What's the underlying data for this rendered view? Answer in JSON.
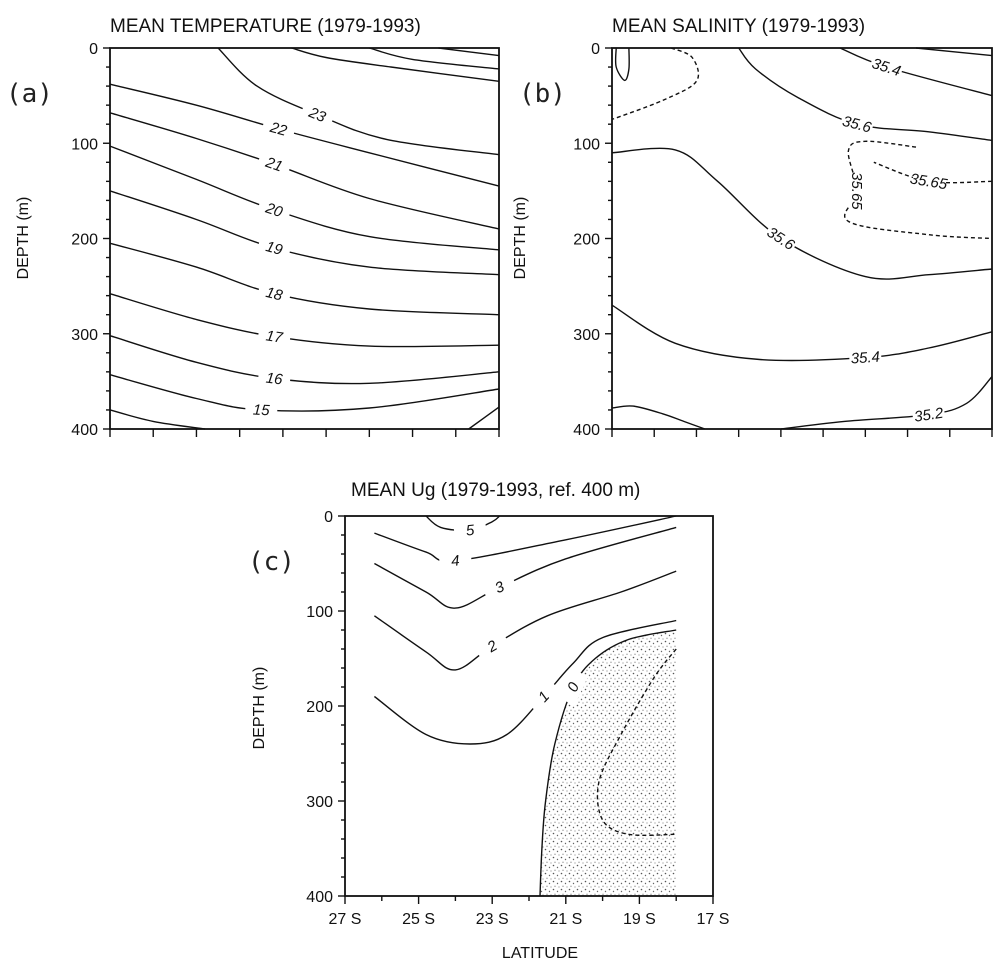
{
  "panels": [
    {
      "id": "a",
      "panel_label": "(a)",
      "title": "MEAN TEMPERATURE (1979-1993)",
      "ylabel": "DEPTH (m)",
      "xlabel": "",
      "y_ticks": [
        "0",
        "100",
        "200",
        "300",
        "400"
      ],
      "x_tick_labels": []
    },
    {
      "id": "b",
      "panel_label": "(b)",
      "title": "MEAN SALINITY (1979-1993)",
      "ylabel": "DEPTH (m)",
      "xlabel": "",
      "y_ticks": [
        "0",
        "100",
        "200",
        "300",
        "400"
      ],
      "x_tick_labels": []
    },
    {
      "id": "c",
      "panel_label": "(c)",
      "title": "MEAN Ug (1979-1993, ref. 400 m)",
      "ylabel": "DEPTH (m)",
      "xlabel": "LATITUDE",
      "y_ticks": [
        "0",
        "100",
        "200",
        "300",
        "400"
      ],
      "x_tick_labels": [
        "27 S",
        "25 S",
        "23 S",
        "21 S",
        "19 S",
        "17 S"
      ]
    }
  ],
  "chart_data": [
    {
      "type": "contour",
      "title": "MEAN TEMPERATURE (1979-1993)",
      "ylabel": "DEPTH (m)",
      "ylim": [
        400,
        0
      ],
      "xlim": [
        27,
        18
      ],
      "contour_levels": [
        {
          "label": "23",
          "points": [
            [
              24.5,
              0
            ],
            [
              23.6,
              40
            ],
            [
              22.2,
              70
            ],
            [
              20.6,
              96
            ],
            [
              18.0,
              112
            ]
          ]
        },
        {
          "label": "22",
          "points": [
            [
              27,
              38
            ],
            [
              25.0,
              60
            ],
            [
              23.1,
              85
            ],
            [
              21.0,
              110
            ],
            [
              18.0,
              145
            ]
          ]
        },
        {
          "label": "21",
          "points": [
            [
              27,
              68
            ],
            [
              25.0,
              95
            ],
            [
              23.2,
              122
            ],
            [
              21.0,
              158
            ],
            [
              18.0,
              190
            ]
          ]
        },
        {
          "label": "20",
          "points": [
            [
              27,
              103
            ],
            [
              25.0,
              138
            ],
            [
              23.2,
              170
            ],
            [
              21.0,
              198
            ],
            [
              18.0,
              212
            ]
          ]
        },
        {
          "label": "19",
          "points": [
            [
              27,
              150
            ],
            [
              25.0,
              180
            ],
            [
              23.2,
              210
            ],
            [
              21.0,
              230
            ],
            [
              18.0,
              238
            ]
          ]
        },
        {
          "label": "18",
          "points": [
            [
              27,
              205
            ],
            [
              25.0,
              230
            ],
            [
              23.2,
              258
            ],
            [
              21.0,
              274
            ],
            [
              18.0,
              280
            ]
          ]
        },
        {
          "label": "17",
          "points": [
            [
              27,
              258
            ],
            [
              25.0,
              285
            ],
            [
              23.2,
              303
            ],
            [
              21.0,
              313
            ],
            [
              18.0,
              312
            ]
          ]
        },
        {
          "label": "16",
          "points": [
            [
              27,
              302
            ],
            [
              25.0,
              330
            ],
            [
              23.2,
              347
            ],
            [
              21.0,
              352
            ],
            [
              18.0,
              340
            ]
          ]
        },
        {
          "label": "15",
          "points": [
            [
              27,
              343
            ],
            [
              25.0,
              368
            ],
            [
              23.5,
              380
            ],
            [
              21.0,
              378
            ],
            [
              18.0,
              358
            ]
          ]
        },
        {
          "label": "",
          "points": [
            [
              27,
              380
            ],
            [
              26.0,
              392
            ],
            [
              24.8,
              400
            ]
          ]
        },
        {
          "label": "",
          "points": [
            [
              18.0,
              377
            ],
            [
              18.7,
              400
            ]
          ]
        },
        {
          "label": "",
          "points": [
            [
              22.8,
              0
            ],
            [
              22.0,
              10
            ],
            [
              20.5,
              20
            ],
            [
              18.0,
              35
            ]
          ]
        },
        {
          "label": "",
          "points": [
            [
              21.0,
              0
            ],
            [
              20.0,
              12
            ],
            [
              18.0,
              22
            ]
          ]
        },
        {
          "label": "",
          "points": [
            [
              19.4,
              0
            ],
            [
              18.0,
              8
            ]
          ]
        }
      ]
    },
    {
      "type": "contour",
      "title": "MEAN SALINITY (1979-1993)",
      "ylabel": "DEPTH (m)",
      "ylim": [
        400,
        0
      ],
      "xlim": [
        27,
        18
      ],
      "contour_levels": [
        {
          "label": "",
          "style": "solid",
          "points": [
            [
              26.9,
              0
            ],
            [
              26.9,
              20
            ],
            [
              26.7,
              34
            ],
            [
              26.6,
              22
            ],
            [
              26.6,
              0
            ]
          ]
        },
        {
          "label": "",
          "style": "dashed",
          "points": [
            [
              25.6,
              0
            ],
            [
              25.1,
              10
            ],
            [
              25.0,
              35
            ],
            [
              25.8,
              55
            ],
            [
              27,
              75
            ]
          ]
        },
        {
          "label": "35.6",
          "style": "solid",
          "points": [
            [
              24.0,
              0
            ],
            [
              23.6,
              22
            ],
            [
              22.6,
              52
            ],
            [
              21.2,
              80
            ],
            [
              19.5,
              88
            ],
            [
              18.0,
              97
            ]
          ]
        },
        {
          "label": "35.4",
          "style": "solid",
          "points": [
            [
              21.6,
              0
            ],
            [
              20.5,
              20
            ],
            [
              18.0,
              50
            ]
          ]
        },
        {
          "label": "",
          "style": "solid",
          "points": [
            [
              19.8,
              0
            ],
            [
              18.0,
              8
            ]
          ]
        },
        {
          "label": "35.65",
          "style": "dashed",
          "points": [
            [
              19.8,
              104
            ],
            [
              21.0,
              98
            ],
            [
              21.4,
              108
            ],
            [
              21.2,
              150
            ],
            [
              21.4,
              182
            ],
            [
              19.5,
              196
            ],
            [
              18.0,
              200
            ]
          ]
        },
        {
          "label": "35.65",
          "style": "dashed",
          "points": [
            [
              18.0,
              140
            ],
            [
              19.5,
              140
            ],
            [
              20.8,
              120
            ]
          ]
        },
        {
          "label": "35.6",
          "style": "solid",
          "points": [
            [
              27,
              110
            ],
            [
              25.5,
              107
            ],
            [
              24.5,
              140
            ],
            [
              23.0,
              200
            ],
            [
              21.0,
              240
            ],
            [
              19.5,
              238
            ],
            [
              18.0,
              232
            ]
          ]
        },
        {
          "label": "35.4",
          "style": "solid",
          "points": [
            [
              27,
              270
            ],
            [
              25.5,
              310
            ],
            [
              23.5,
              327
            ],
            [
              21.0,
              325
            ],
            [
              19.5,
              315
            ],
            [
              18.0,
              298
            ]
          ]
        },
        {
          "label": "35.2",
          "style": "solid",
          "points": [
            [
              23.0,
              400
            ],
            [
              21.5,
              392
            ],
            [
              19.5,
              385
            ],
            [
              18.6,
              373
            ],
            [
              18.0,
              345
            ]
          ]
        },
        {
          "label": "",
          "style": "solid",
          "points": [
            [
              27,
              378
            ],
            [
              26.5,
              376
            ],
            [
              25.8,
              384
            ],
            [
              25.3,
              392
            ],
            [
              24.8,
              400
            ]
          ]
        }
      ]
    },
    {
      "type": "contour",
      "title": "MEAN Ug (1979-1993, ref. 400 m)",
      "xlabel": "LATITUDE",
      "ylabel": "DEPTH (m)",
      "ylim": [
        400,
        0
      ],
      "xlim": [
        27,
        17
      ],
      "x_ticks": [
        "27 S",
        "25 S",
        "23 S",
        "21 S",
        "19 S",
        "17 S"
      ],
      "shaded_region": "Ug < 0",
      "contour_levels": [
        {
          "label": "5",
          "style": "solid",
          "points": [
            [
              24.8,
              0
            ],
            [
              24.4,
              12
            ],
            [
              23.6,
              15
            ],
            [
              23.0,
              6
            ],
            [
              22.8,
              0
            ]
          ]
        },
        {
          "label": "4",
          "style": "solid",
          "points": [
            [
              26.2,
              18
            ],
            [
              24.8,
              38
            ],
            [
              24.0,
              47
            ],
            [
              21.0,
              25
            ],
            [
              18.0,
              0
            ]
          ]
        },
        {
          "label": "3",
          "style": "solid",
          "points": [
            [
              26.2,
              50
            ],
            [
              24.8,
              80
            ],
            [
              24.0,
              97
            ],
            [
              22.8,
              75
            ],
            [
              21.0,
              45
            ],
            [
              18.0,
              12
            ]
          ]
        },
        {
          "label": "2",
          "style": "solid",
          "points": [
            [
              26.2,
              105
            ],
            [
              24.8,
              143
            ],
            [
              24.0,
              162
            ],
            [
              23.0,
              137
            ],
            [
              21.5,
              105
            ],
            [
              19.5,
              80
            ],
            [
              18.0,
              58
            ]
          ]
        },
        {
          "label": "1",
          "style": "solid",
          "points": [
            [
              26.2,
              190
            ],
            [
              24.8,
              230
            ],
            [
              23.6,
              240
            ],
            [
              22.6,
              230
            ],
            [
              21.6,
              190
            ],
            [
              20.8,
              155
            ],
            [
              20.0,
              128
            ],
            [
              18.0,
              110
            ]
          ]
        },
        {
          "label": "0",
          "style": "solid",
          "points": [
            [
              21.7,
              400
            ],
            [
              21.65,
              350
            ],
            [
              21.55,
              300
            ],
            [
              21.3,
              240
            ],
            [
              20.8,
              180
            ],
            [
              20.2,
              150
            ],
            [
              19.3,
              130
            ],
            [
              18.0,
              120
            ]
          ]
        },
        {
          "label": "",
          "style": "dashed",
          "points": [
            [
              18.0,
              140
            ],
            [
              18.6,
              170
            ],
            [
              19.5,
              230
            ],
            [
              20.1,
              280
            ],
            [
              20.0,
              320
            ],
            [
              19.3,
              335
            ],
            [
              18.0,
              335
            ]
          ]
        }
      ]
    }
  ]
}
